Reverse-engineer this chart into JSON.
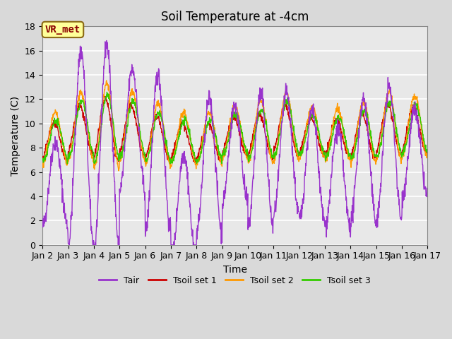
{
  "title": "Soil Temperature at -4cm",
  "xlabel": "Time",
  "ylabel": "Temperature (C)",
  "ylim": [
    0,
    18
  ],
  "xlim_days": [
    2,
    17
  ],
  "x_tick_labels": [
    "Jan 2",
    "Jan 3",
    "Jan 4",
    "Jan 5",
    "Jan 6",
    "Jan 7",
    "Jan 8",
    "Jan 9",
    "Jan 10",
    "Jan 11",
    "Jan 12",
    "Jan 13",
    "Jan 14",
    "Jan 15",
    "Jan 16",
    "Jan 17"
  ],
  "x_tick_positions": [
    2,
    3,
    4,
    5,
    6,
    7,
    8,
    9,
    10,
    11,
    12,
    13,
    14,
    15,
    16,
    17
  ],
  "yticks": [
    0,
    2,
    4,
    6,
    8,
    10,
    12,
    14,
    16,
    18
  ],
  "legend_labels": [
    "Tair",
    "Tsoil set 1",
    "Tsoil set 2",
    "Tsoil set 3"
  ],
  "line_colors": [
    "#9933cc",
    "#cc0000",
    "#ff9900",
    "#33cc00"
  ],
  "annotation_text": "VR_met",
  "annotation_color": "#8b0000",
  "annotation_bg": "#ffff99",
  "annotation_border": "#8b6914",
  "background_color": "#d9d9d9",
  "plot_bg_color": "#e8e8e8",
  "title_fontsize": 12,
  "axis_fontsize": 10,
  "tick_fontsize": 9,
  "figwidth": 6.4,
  "figheight": 4.8,
  "dpi": 100
}
